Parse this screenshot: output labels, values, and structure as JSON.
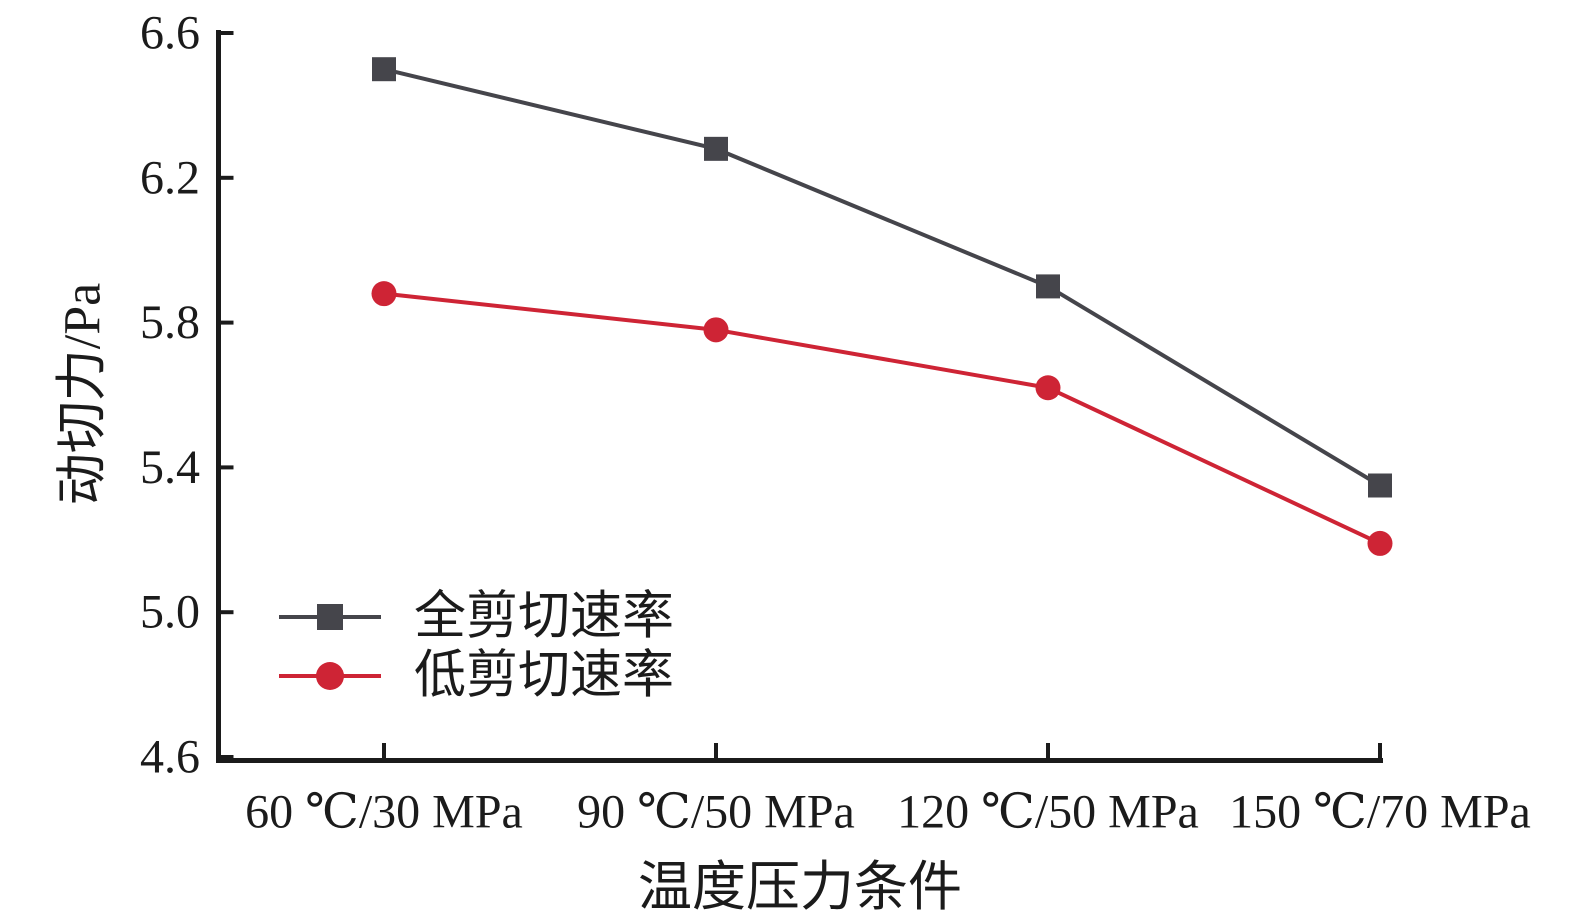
{
  "chart_data": {
    "type": "line",
    "title": "",
    "xlabel": "温度压力条件",
    "ylabel": "动切力/Pa",
    "categories": [
      "60 ℃/30 MPa",
      "90 ℃/50 MPa",
      "120 ℃/50 MPa",
      "150 ℃/70 MPa"
    ],
    "series": [
      {
        "name": "全剪切速率",
        "color": "#45454b",
        "marker": "square",
        "values": [
          6.5,
          6.28,
          5.9,
          5.35
        ]
      },
      {
        "name": "低剪切速率",
        "color": "#ce2435",
        "marker": "circle",
        "values": [
          5.88,
          5.78,
          5.62,
          5.19
        ]
      }
    ],
    "ylim": [
      4.6,
      6.6
    ],
    "ytick_labels": [
      "4.6",
      "5.0",
      "5.4",
      "5.8",
      "6.2",
      "6.6"
    ],
    "grid": false,
    "legend_position": "inside-lower-left",
    "axis_color": "#1b1b1b",
    "background": "#ffffff"
  }
}
